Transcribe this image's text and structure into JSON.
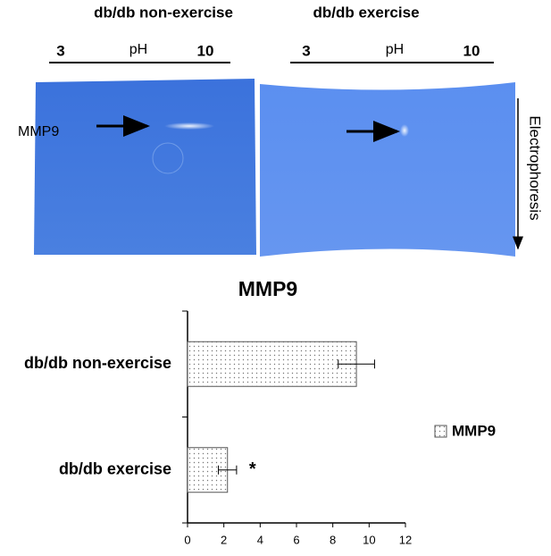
{
  "gels": [
    {
      "title": "db/db non-exercise",
      "ph_low": 3,
      "ph_label": "pH",
      "ph_high": 10,
      "band_label": "MMP9"
    },
    {
      "title": "db/db exercise",
      "ph_low": 3,
      "ph_label": "pH",
      "ph_high": 10
    }
  ],
  "direction_label": "Electrophoresis",
  "chart_data": {
    "type": "hbar",
    "title": "MMP9",
    "categories": [
      "db/db non-exercise",
      "db/db exercise"
    ],
    "series": [
      {
        "name": "MMP9",
        "color": "#555555",
        "values": [
          9.3,
          2.2
        ],
        "errors": [
          1.0,
          0.5
        ]
      }
    ],
    "annotation": "*",
    "xlim": [
      0,
      12
    ],
    "xticks": [
      0,
      2,
      4,
      6,
      8,
      10,
      12
    ]
  }
}
